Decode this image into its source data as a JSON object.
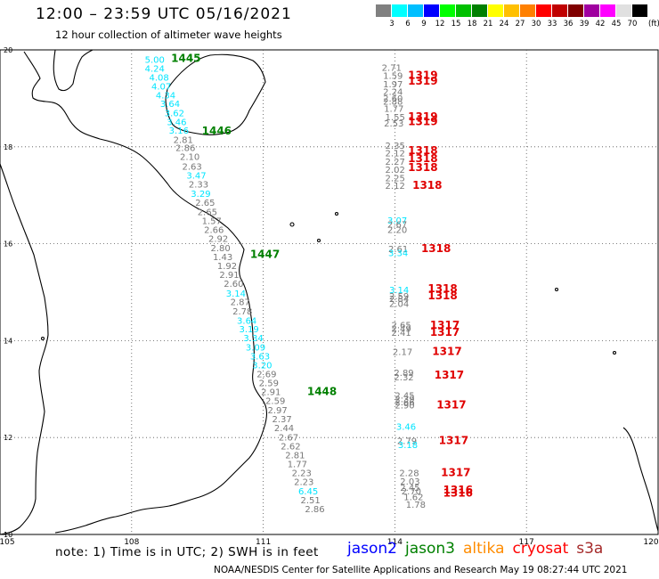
{
  "header": {
    "title": "12:00 – 23:59 UTC 05/16/2021",
    "subtitle": "12 hour collection of altimeter wave heights"
  },
  "legend": {
    "colors": [
      "#808080",
      "#00ffff",
      "#00bfff",
      "#0000ff",
      "#00ff00",
      "#00c000",
      "#008000",
      "#ffff00",
      "#ffc000",
      "#ff8000",
      "#ff0000",
      "#c00000",
      "#800000",
      "#a000a0",
      "#ff00ff",
      "#e0e0e0",
      "#000000"
    ],
    "labels": [
      "3",
      "6",
      "9",
      "12",
      "15",
      "18",
      "21",
      "24",
      "27",
      "30",
      "33",
      "36",
      "39",
      "42",
      "45",
      "70"
    ],
    "unit": "(ft)"
  },
  "map": {
    "lon_range": [
      105,
      120
    ],
    "lat_range": [
      10,
      20
    ],
    "lon_ticks": [
      "105",
      "108",
      "111",
      "114",
      "117",
      "120"
    ],
    "lat_ticks": [
      {
        "lat": 20,
        "label": "20"
      },
      {
        "lat": 18,
        "label": "18"
      },
      {
        "lat": 16,
        "label": "16"
      },
      {
        "lat": 14,
        "label": "14"
      },
      {
        "lat": 12,
        "label": "12"
      },
      {
        "lat": 10,
        "label": "10"
      }
    ],
    "grid": "dotted",
    "colors": {
      "gray": "#777777",
      "cyan": "#00e5ff",
      "green": "#008000",
      "red": "#e00000",
      "coast": "#000000"
    }
  },
  "tracks": [
    {
      "values": [
        {
          "t": "5.00",
          "lon": 108.3,
          "lat": 19.73,
          "c": "cyan"
        },
        {
          "t": "4.24",
          "lon": 108.3,
          "lat": 19.55,
          "c": "cyan"
        },
        {
          "t": "4.08",
          "lon": 108.4,
          "lat": 19.37,
          "c": "cyan"
        },
        {
          "t": "4.07",
          "lon": 108.45,
          "lat": 19.18,
          "c": "cyan"
        },
        {
          "t": "4.34",
          "lon": 108.55,
          "lat": 19.0,
          "c": "cyan"
        },
        {
          "t": "3.64",
          "lon": 108.65,
          "lat": 18.82,
          "c": "cyan"
        },
        {
          "t": "3.62",
          "lon": 108.75,
          "lat": 18.63,
          "c": "cyan"
        },
        {
          "t": "3.46",
          "lon": 108.8,
          "lat": 18.45,
          "c": "cyan"
        },
        {
          "t": "3.16",
          "lon": 108.85,
          "lat": 18.27,
          "c": "cyan"
        },
        {
          "t": "2.81",
          "lon": 108.95,
          "lat": 18.08,
          "c": "gray"
        },
        {
          "t": "2.86",
          "lon": 109.0,
          "lat": 17.91,
          "c": "gray"
        },
        {
          "t": "2.10",
          "lon": 109.1,
          "lat": 17.73,
          "c": "gray"
        },
        {
          "t": "2.63",
          "lon": 109.15,
          "lat": 17.53,
          "c": "gray"
        },
        {
          "t": "3.47",
          "lon": 109.25,
          "lat": 17.34,
          "c": "cyan"
        },
        {
          "t": "2.33",
          "lon": 109.3,
          "lat": 17.16,
          "c": "gray"
        },
        {
          "t": "3.29",
          "lon": 109.35,
          "lat": 16.97,
          "c": "cyan"
        },
        {
          "t": "2.65",
          "lon": 109.45,
          "lat": 16.78,
          "c": "gray"
        },
        {
          "t": "2.65",
          "lon": 109.5,
          "lat": 16.59,
          "c": "gray"
        },
        {
          "t": "1.57",
          "lon": 109.6,
          "lat": 16.41,
          "c": "gray"
        },
        {
          "t": "2.66",
          "lon": 109.65,
          "lat": 16.22,
          "c": "gray"
        },
        {
          "t": "2.92",
          "lon": 109.75,
          "lat": 16.04,
          "c": "gray"
        },
        {
          "t": "2.80",
          "lon": 109.8,
          "lat": 15.85,
          "c": "gray"
        },
        {
          "t": "1.43",
          "lon": 109.85,
          "lat": 15.66,
          "c": "gray"
        },
        {
          "t": "1.92",
          "lon": 109.95,
          "lat": 15.48,
          "c": "gray"
        },
        {
          "t": "2.91",
          "lon": 110.0,
          "lat": 15.29,
          "c": "gray"
        },
        {
          "t": "2.60",
          "lon": 110.1,
          "lat": 15.11,
          "c": "gray"
        },
        {
          "t": "3.14",
          "lon": 110.15,
          "lat": 14.91,
          "c": "cyan"
        },
        {
          "t": "2.87",
          "lon": 110.25,
          "lat": 14.73,
          "c": "gray"
        },
        {
          "t": "2.78",
          "lon": 110.3,
          "lat": 14.54,
          "c": "gray"
        },
        {
          "t": "3.64",
          "lon": 110.4,
          "lat": 14.35,
          "c": "cyan"
        },
        {
          "t": "3.19",
          "lon": 110.45,
          "lat": 14.17,
          "c": "cyan"
        },
        {
          "t": "3.34",
          "lon": 110.55,
          "lat": 13.99,
          "c": "cyan"
        },
        {
          "t": "3.09",
          "lon": 110.6,
          "lat": 13.8,
          "c": "cyan"
        },
        {
          "t": "3.63",
          "lon": 110.7,
          "lat": 13.61,
          "c": "cyan"
        },
        {
          "t": "3.20",
          "lon": 110.75,
          "lat": 13.43,
          "c": "cyan"
        },
        {
          "t": "2.69",
          "lon": 110.85,
          "lat": 13.24,
          "c": "gray"
        },
        {
          "t": "2.59",
          "lon": 110.9,
          "lat": 13.06,
          "c": "gray"
        },
        {
          "t": "2.91",
          "lon": 110.95,
          "lat": 12.88,
          "c": "gray"
        },
        {
          "t": "2.59",
          "lon": 111.05,
          "lat": 12.69,
          "c": "gray"
        },
        {
          "t": "2.97",
          "lon": 111.1,
          "lat": 12.5,
          "c": "gray"
        },
        {
          "t": "2.37",
          "lon": 111.2,
          "lat": 12.32,
          "c": "gray"
        },
        {
          "t": "2.44",
          "lon": 111.25,
          "lat": 12.13,
          "c": "gray"
        },
        {
          "t": "2.67",
          "lon": 111.35,
          "lat": 11.94,
          "c": "gray"
        },
        {
          "t": "2.62",
          "lon": 111.4,
          "lat": 11.76,
          "c": "gray"
        },
        {
          "t": "2.81",
          "lon": 111.5,
          "lat": 11.57,
          "c": "gray"
        },
        {
          "t": "1.77",
          "lon": 111.55,
          "lat": 11.39,
          "c": "gray"
        },
        {
          "t": "2.23",
          "lon": 111.65,
          "lat": 11.2,
          "c": "gray"
        },
        {
          "t": "2.23",
          "lon": 111.7,
          "lat": 11.02,
          "c": "gray"
        },
        {
          "t": "6.45",
          "lon": 111.8,
          "lat": 10.83,
          "c": "cyan"
        },
        {
          "t": "2.51",
          "lon": 111.85,
          "lat": 10.64,
          "c": "gray"
        },
        {
          "t": "2.86",
          "lon": 111.95,
          "lat": 10.46,
          "c": "gray"
        }
      ]
    },
    {
      "values": [
        {
          "t": "2.71",
          "lon": 113.7,
          "lat": 19.57,
          "c": "gray"
        },
        {
          "t": "1.59",
          "lon": 113.73,
          "lat": 19.4,
          "c": "gray"
        },
        {
          "t": "1.97",
          "lon": 113.73,
          "lat": 19.23,
          "c": "gray"
        },
        {
          "t": "2.24",
          "lon": 113.73,
          "lat": 19.07,
          "c": "gray"
        },
        {
          "t": "2.60",
          "lon": 113.73,
          "lat": 18.93,
          "c": "gray"
        },
        {
          "t": "2.88",
          "lon": 113.73,
          "lat": 18.87,
          "c": "gray"
        },
        {
          "t": "1.77",
          "lon": 113.75,
          "lat": 18.72,
          "c": "gray"
        },
        {
          "t": "1.55",
          "lon": 113.78,
          "lat": 18.55,
          "c": "gray"
        },
        {
          "t": "2.53",
          "lon": 113.75,
          "lat": 18.42,
          "c": "gray"
        },
        {
          "t": "2.35",
          "lon": 113.78,
          "lat": 17.96,
          "c": "gray"
        },
        {
          "t": "2.12",
          "lon": 113.78,
          "lat": 17.8,
          "c": "gray"
        },
        {
          "t": "2.27",
          "lon": 113.78,
          "lat": 17.63,
          "c": "gray"
        },
        {
          "t": "2.02",
          "lon": 113.78,
          "lat": 17.46,
          "c": "gray"
        },
        {
          "t": "2.25",
          "lon": 113.78,
          "lat": 17.29,
          "c": "gray"
        },
        {
          "t": "2.12",
          "lon": 113.78,
          "lat": 17.13,
          "c": "gray"
        },
        {
          "t": "3.07",
          "lon": 113.83,
          "lat": 16.42,
          "c": "cyan"
        },
        {
          "t": "2.67",
          "lon": 113.83,
          "lat": 16.33,
          "c": "gray"
        },
        {
          "t": "2.20",
          "lon": 113.83,
          "lat": 16.22,
          "c": "gray"
        },
        {
          "t": "2.61",
          "lon": 113.85,
          "lat": 15.83,
          "c": "gray"
        },
        {
          "t": "3.34",
          "lon": 113.85,
          "lat": 15.74,
          "c": "cyan"
        },
        {
          "t": "3.14",
          "lon": 113.87,
          "lat": 14.98,
          "c": "cyan"
        },
        {
          "t": "2.59",
          "lon": 113.87,
          "lat": 14.85,
          "c": "gray"
        },
        {
          "t": "2.84",
          "lon": 113.87,
          "lat": 14.8,
          "c": "gray"
        },
        {
          "t": "2.04",
          "lon": 113.87,
          "lat": 14.7,
          "c": "gray"
        },
        {
          "t": "2.65",
          "lon": 113.92,
          "lat": 14.26,
          "c": "gray"
        },
        {
          "t": "2.49",
          "lon": 113.92,
          "lat": 14.18,
          "c": "gray"
        },
        {
          "t": "2.41",
          "lon": 113.92,
          "lat": 14.1,
          "c": "gray"
        },
        {
          "t": "2.17",
          "lon": 113.95,
          "lat": 13.7,
          "c": "gray"
        },
        {
          "t": "2.89",
          "lon": 113.98,
          "lat": 13.27,
          "c": "gray"
        },
        {
          "t": "2.32",
          "lon": 113.98,
          "lat": 13.18,
          "c": "gray"
        },
        {
          "t": "2.45",
          "lon": 114.0,
          "lat": 12.8,
          "c": "gray"
        },
        {
          "t": "2.39",
          "lon": 114.0,
          "lat": 12.73,
          "c": "gray"
        },
        {
          "t": "2.66",
          "lon": 114.0,
          "lat": 12.67,
          "c": "gray"
        },
        {
          "t": "2.90",
          "lon": 114.0,
          "lat": 12.6,
          "c": "gray"
        },
        {
          "t": "3.46",
          "lon": 114.03,
          "lat": 12.16,
          "c": "cyan"
        },
        {
          "t": "2.79",
          "lon": 114.05,
          "lat": 11.87,
          "c": "gray"
        },
        {
          "t": "3.18",
          "lon": 114.07,
          "lat": 11.78,
          "c": "cyan"
        },
        {
          "t": "2.28",
          "lon": 114.1,
          "lat": 11.2,
          "c": "gray"
        },
        {
          "t": "2.03",
          "lon": 114.12,
          "lat": 11.03,
          "c": "gray"
        },
        {
          "t": "2.45",
          "lon": 114.12,
          "lat": 10.9,
          "c": "gray"
        },
        {
          "t": "2.70",
          "lon": 114.15,
          "lat": 10.83,
          "c": "gray"
        },
        {
          "t": "1.62",
          "lon": 114.2,
          "lat": 10.71,
          "c": "gray"
        },
        {
          "t": "1.78",
          "lon": 114.25,
          "lat": 10.55,
          "c": "gray"
        }
      ]
    }
  ],
  "time_tags": [
    {
      "t": "1445",
      "lon": 108.9,
      "lat": 19.75,
      "c": "green"
    },
    {
      "t": "1446",
      "lon": 109.6,
      "lat": 18.25,
      "c": "green"
    },
    {
      "t": "1447",
      "lon": 110.7,
      "lat": 15.71,
      "c": "green"
    },
    {
      "t": "1448",
      "lon": 112.0,
      "lat": 12.88,
      "c": "green"
    },
    {
      "t": "1319",
      "lon": 114.3,
      "lat": 19.4,
      "c": "red"
    },
    {
      "t": "1319",
      "lon": 114.3,
      "lat": 19.28,
      "c": "red"
    },
    {
      "t": "1319",
      "lon": 114.3,
      "lat": 18.55,
      "c": "red"
    },
    {
      "t": "1319",
      "lon": 114.3,
      "lat": 18.45,
      "c": "red"
    },
    {
      "t": "1318",
      "lon": 114.3,
      "lat": 17.85,
      "c": "red"
    },
    {
      "t": "1318",
      "lon": 114.3,
      "lat": 17.68,
      "c": "red"
    },
    {
      "t": "1318",
      "lon": 114.3,
      "lat": 17.5,
      "c": "red"
    },
    {
      "t": "1318",
      "lon": 114.4,
      "lat": 17.13,
      "c": "red"
    },
    {
      "t": "1318",
      "lon": 114.6,
      "lat": 15.83,
      "c": "red"
    },
    {
      "t": "1318",
      "lon": 114.75,
      "lat": 15.0,
      "c": "red"
    },
    {
      "t": "1318",
      "lon": 114.75,
      "lat": 14.85,
      "c": "red"
    },
    {
      "t": "1317",
      "lon": 114.8,
      "lat": 14.25,
      "c": "red"
    },
    {
      "t": "1317",
      "lon": 114.8,
      "lat": 14.1,
      "c": "red"
    },
    {
      "t": "1317",
      "lon": 114.85,
      "lat": 13.7,
      "c": "red"
    },
    {
      "t": "1317",
      "lon": 114.9,
      "lat": 13.22,
      "c": "red"
    },
    {
      "t": "1317",
      "lon": 114.95,
      "lat": 12.6,
      "c": "red"
    },
    {
      "t": "1317",
      "lon": 115.0,
      "lat": 11.87,
      "c": "red"
    },
    {
      "t": "1317",
      "lon": 115.05,
      "lat": 11.2,
      "c": "red"
    },
    {
      "t": "1316",
      "lon": 115.1,
      "lat": 10.85,
      "c": "red"
    },
    {
      "t": "1316",
      "lon": 115.1,
      "lat": 10.78,
      "c": "red"
    }
  ],
  "footer": {
    "note": "note:  1) Time is in UTC;  2) SWH is in feet",
    "satellites": [
      {
        "name": "jason2",
        "color": "#0000ff"
      },
      {
        "name": "jason3",
        "color": "#008000"
      },
      {
        "name": "altika",
        "color": "#ff8c00"
      },
      {
        "name": "cryosat",
        "color": "#ff0000"
      },
      {
        "name": "s3a",
        "color": "#a52a2a"
      }
    ],
    "credit": "NOAA/NESDIS Center for Satellite Applications and Research    May 19 08:27:44 UTC 2021"
  }
}
